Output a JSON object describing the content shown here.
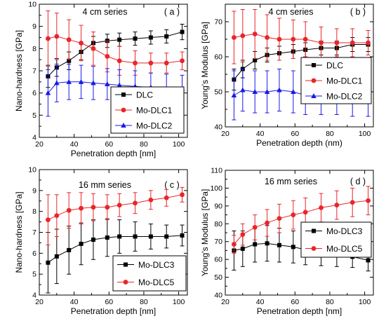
{
  "chart_data": [
    {
      "type": "line",
      "panel_label": "( a )",
      "title": "4 cm series",
      "xlabel": "Penetration depth [nm]",
      "ylabel": "Nano-hardness [GPa]",
      "xlim": [
        20,
        105
      ],
      "ylim": [
        4,
        10
      ],
      "xticks": [
        "20",
        "40",
        "60",
        "80",
        "100"
      ],
      "yticks": [
        "4",
        "5",
        "6",
        "7",
        "8",
        "9",
        "10"
      ],
      "legend_position": "bottom-right",
      "x": [
        25,
        30,
        37,
        44,
        51,
        59,
        66,
        75,
        84,
        93,
        102
      ],
      "series": [
        {
          "name": "DLC",
          "color": "#000000",
          "marker": "square",
          "values": [
            6.75,
            7.15,
            7.45,
            7.85,
            8.25,
            8.35,
            8.4,
            8.45,
            8.5,
            8.55,
            8.75
          ],
          "errors": [
            0.5,
            0.4,
            0.4,
            0.35,
            0.3,
            0.3,
            0.3,
            0.3,
            0.3,
            0.3,
            0.35
          ]
        },
        {
          "name": "Mo-DLC1",
          "color": "#e8262a",
          "marker": "circle",
          "values": [
            8.45,
            8.55,
            8.4,
            8.25,
            8.0,
            7.65,
            7.45,
            7.35,
            7.35,
            7.35,
            7.45
          ],
          "errors": [
            1.25,
            1.05,
            0.9,
            0.8,
            0.75,
            0.7,
            0.65,
            0.55,
            0.45,
            0.45,
            0.4
          ]
        },
        {
          "name": "Mo-DLC2",
          "color": "#1a1ae6",
          "marker": "triangle",
          "values": [
            6.0,
            6.45,
            6.5,
            6.5,
            6.45,
            6.4,
            6.35,
            6.3,
            6.25,
            6.2,
            6.2
          ],
          "errors": [
            1.05,
            0.85,
            0.8,
            0.75,
            0.75,
            0.7,
            0.7,
            0.7,
            0.65,
            0.65,
            0.6
          ]
        }
      ]
    },
    {
      "type": "line",
      "panel_label": "( b )",
      "title": "4 cm series",
      "xlabel": "Penetration depth (nm)",
      "ylabel": "Young's Modulus [GPa]",
      "xlim": [
        20,
        105
      ],
      "ylim": [
        40,
        75
      ],
      "xticks": [
        "20",
        "40",
        "60",
        "80",
        "100"
      ],
      "yticks": [
        "40",
        "50",
        "60",
        "70"
      ],
      "legend_position": "center-right",
      "x": [
        25,
        30,
        37,
        44,
        51,
        59,
        66,
        75,
        84,
        93,
        102
      ],
      "series": [
        {
          "name": "DLC",
          "color": "#000000",
          "marker": "square",
          "values": [
            53.5,
            56.5,
            59,
            60.5,
            61,
            61.5,
            62,
            62.5,
            62.5,
            63.5,
            63.5
          ],
          "errors": [
            3,
            2.5,
            2.5,
            2,
            2,
            2,
            2,
            2,
            2,
            2,
            2
          ]
        },
        {
          "name": "Mo-DLC1",
          "color": "#e8262a",
          "marker": "circle",
          "values": [
            65.5,
            66,
            66.5,
            65.5,
            65,
            65,
            65,
            64,
            64,
            64,
            64
          ],
          "errors": [
            7.5,
            7.5,
            7,
            6.5,
            6,
            5.5,
            5,
            4.5,
            4,
            4,
            3.5
          ]
        },
        {
          "name": "Mo-DLC2",
          "color": "#1a1ae6",
          "marker": "triangle",
          "values": [
            49,
            50.5,
            50,
            50,
            50.5,
            50,
            49,
            48.5,
            48.5,
            48,
            48
          ],
          "errors": [
            7,
            6,
            6,
            6,
            6,
            6,
            5.5,
            5,
            5,
            5,
            5
          ]
        }
      ]
    },
    {
      "type": "line",
      "panel_label": "( c )",
      "title": "16 mm series",
      "xlabel": "Penetration depth [nm]",
      "ylabel": "Nano-hardness [GPa]",
      "xlim": [
        20,
        105
      ],
      "ylim": [
        4,
        10
      ],
      "xticks": [
        "20",
        "40",
        "60",
        "80",
        "100"
      ],
      "yticks": [
        "4",
        "5",
        "6",
        "7",
        "8",
        "9",
        "10"
      ],
      "legend_position": "bottom-right",
      "x": [
        25,
        30,
        37,
        44,
        51,
        59,
        66,
        75,
        84,
        93,
        102
      ],
      "series": [
        {
          "name": "Mo-DLC3",
          "color": "#000000",
          "marker": "square",
          "values": [
            5.55,
            5.85,
            6.15,
            6.45,
            6.65,
            6.75,
            6.8,
            6.8,
            6.8,
            6.8,
            6.85
          ],
          "errors": [
            1.45,
            1.3,
            1.15,
            1.0,
            0.95,
            0.9,
            0.8,
            0.7,
            0.6,
            0.55,
            0.5
          ]
        },
        {
          "name": "Mo-DLC5",
          "color": "#e8262a",
          "marker": "circle",
          "values": [
            7.6,
            7.8,
            8.05,
            8.15,
            8.2,
            8.2,
            8.3,
            8.4,
            8.55,
            8.65,
            8.8
          ],
          "errors": [
            1.2,
            1.0,
            0.85,
            0.75,
            0.65,
            0.6,
            0.55,
            0.5,
            0.45,
            0.4,
            0.35
          ]
        }
      ]
    },
    {
      "type": "line",
      "panel_label": "( d )",
      "title": "16 mm series",
      "xlabel": "Penetration depth [nm]",
      "ylabel": "Young's Modulus [GPa]",
      "xlim": [
        20,
        105
      ],
      "ylim": [
        40,
        110
      ],
      "xticks": [
        "20",
        "40",
        "60",
        "80",
        "100"
      ],
      "yticks": [
        "40",
        "50",
        "60",
        "70",
        "80",
        "90",
        "100",
        "110"
      ],
      "legend_position": "center-right",
      "x": [
        25,
        30,
        37,
        44,
        51,
        59,
        66,
        75,
        84,
        93,
        102
      ],
      "series": [
        {
          "name": "Mo-DLC3",
          "color": "#000000",
          "marker": "square",
          "values": [
            65,
            66,
            68.5,
            69,
            68,
            67,
            65.5,
            64,
            62.5,
            61.5,
            59.5
          ],
          "errors": [
            11,
            10,
            10,
            10,
            9.5,
            9,
            8.5,
            7.5,
            6.5,
            6,
            6
          ]
        },
        {
          "name": "Mo-DLC5",
          "color": "#e8262a",
          "marker": "circle",
          "values": [
            68.5,
            74,
            78,
            80.5,
            83,
            85,
            86.5,
            89,
            90.5,
            92,
            93
          ],
          "errors": [
            5,
            6,
            7,
            7.5,
            8,
            8,
            8,
            8,
            8,
            8,
            8
          ]
        }
      ]
    }
  ]
}
